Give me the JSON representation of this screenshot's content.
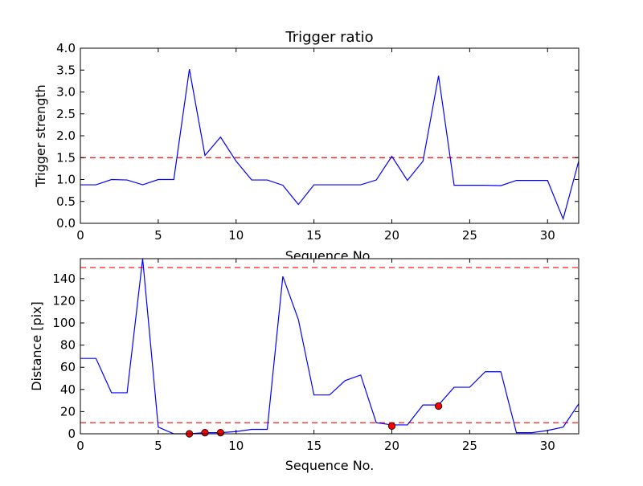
{
  "chart_data": [
    {
      "type": "line",
      "title": "Trigger ratio",
      "xlabel": "Sequence No.",
      "ylabel": "Trigger strength",
      "xlim": [
        0,
        32
      ],
      "ylim": [
        0,
        4.0
      ],
      "xticks": [
        0,
        5,
        10,
        15,
        20,
        25,
        30
      ],
      "yticks": [
        0.0,
        0.5,
        1.0,
        1.5,
        2.0,
        2.5,
        3.0,
        3.5,
        4.0
      ],
      "ytick_labels": [
        "0.0",
        "0.5",
        "1.0",
        "1.5",
        "2.0",
        "2.5",
        "3.0",
        "3.5",
        "4.0"
      ],
      "grid": false,
      "colors": {
        "series": "#0000ff",
        "threshold": "#ff0000"
      },
      "series": [
        {
          "x": [
            0,
            1,
            2,
            3,
            4,
            5,
            6,
            7,
            8,
            9,
            10,
            11,
            12,
            13,
            14,
            15,
            16,
            17,
            18,
            19,
            20,
            21,
            22,
            23,
            24,
            25,
            26,
            27,
            28,
            29,
            30,
            31,
            32
          ],
          "values": [
            0.88,
            0.88,
            1.0,
            0.99,
            0.88,
            1.0,
            1.0,
            3.52,
            1.55,
            1.97,
            1.42,
            0.99,
            0.99,
            0.87,
            0.43,
            0.88,
            0.88,
            0.88,
            0.88,
            0.99,
            1.53,
            0.98,
            1.42,
            3.37,
            0.87,
            0.87,
            0.87,
            0.86,
            0.98,
            0.98,
            0.98,
            0.1,
            1.42
          ]
        }
      ],
      "thresholds": [
        1.5
      ]
    },
    {
      "type": "line",
      "title": "",
      "xlabel": "Sequence No.",
      "ylabel": "Distance [pix]",
      "xlim": [
        0,
        32
      ],
      "ylim": [
        0,
        158
      ],
      "xticks": [
        0,
        5,
        10,
        15,
        20,
        25,
        30
      ],
      "yticks": [
        0,
        20,
        40,
        60,
        80,
        100,
        120,
        140
      ],
      "ytick_labels": [
        "0",
        "20",
        "40",
        "60",
        "80",
        "100",
        "120",
        "140"
      ],
      "grid": false,
      "colors": {
        "series": "#0000ff",
        "threshold": "#ff0000",
        "markers": "#ff0000"
      },
      "series": [
        {
          "x": [
            0,
            1,
            2,
            3,
            4,
            5,
            6,
            7,
            8,
            9,
            10,
            11,
            12,
            13,
            14,
            15,
            16,
            17,
            18,
            19,
            20,
            21,
            22,
            23,
            24,
            25,
            26,
            27,
            28,
            29,
            30,
            31,
            32
          ],
          "values": [
            68,
            68,
            37,
            37,
            158,
            6,
            0,
            0,
            1,
            1,
            2,
            4,
            4,
            142,
            103,
            35,
            35,
            48,
            53,
            10,
            8,
            8,
            26,
            26,
            42,
            42,
            56,
            56,
            1,
            1,
            3,
            6,
            27
          ]
        }
      ],
      "markers": {
        "x": [
          7,
          8,
          9,
          20,
          23
        ],
        "values": [
          0,
          1,
          1,
          7,
          25
        ]
      },
      "thresholds": [
        10,
        150
      ]
    }
  ]
}
